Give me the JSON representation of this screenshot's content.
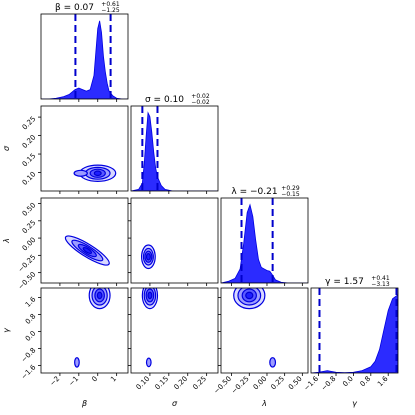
{
  "chart_data": {
    "type": "corner",
    "parameters": [
      {
        "symbol": "β",
        "label": "β",
        "range": [
          -3,
          1.6
        ],
        "ticks": [
          "−2",
          "−1",
          "0",
          "1"
        ],
        "tick_values": [
          -2,
          -1,
          0,
          1
        ],
        "median": 0.07,
        "plus": "+0.61",
        "minus": "−1.25",
        "title_main": "β = 0.07",
        "q_low": -1.18,
        "q_high": 0.68
      },
      {
        "symbol": "σ",
        "label": "σ",
        "range": [
          0.05,
          0.28
        ],
        "ticks": [
          "0.10",
          "0.15",
          "0.20",
          "0.25"
        ],
        "tick_values": [
          0.1,
          0.15,
          0.2,
          0.25
        ],
        "median": 0.1,
        "plus": "+0.02",
        "minus": "−0.02",
        "title_main": "σ = 0.10",
        "q_low": 0.08,
        "q_high": 0.12
      },
      {
        "symbol": "λ",
        "label": "λ",
        "range": [
          -0.65,
          0.58
        ],
        "ticks": [
          "−0.50",
          "−0.25",
          "0.00",
          "0.25",
          "0.50"
        ],
        "tick_values": [
          -0.5,
          -0.25,
          0.0,
          0.25,
          0.5
        ],
        "median": -0.21,
        "plus": "+0.29",
        "minus": "−0.15",
        "title_main": "λ = −0.21",
        "q_low": -0.36,
        "q_high": 0.08
      },
      {
        "symbol": "γ",
        "label": "γ",
        "range": [
          -1.95,
          2.05
        ],
        "ticks": [
          "−1.6",
          "−0.8",
          "0.0",
          "0.8",
          "1.6"
        ],
        "tick_values": [
          -1.6,
          -0.8,
          0.0,
          0.8,
          1.6
        ],
        "median": 1.57,
        "plus": "+0.41",
        "minus": "−3.13",
        "title_main": "γ = 1.57",
        "q_low": -1.56,
        "q_high": 1.98
      }
    ],
    "marginals": [
      {
        "param": 0,
        "x": [
          -3.0,
          -2.6,
          -2.2,
          -1.8,
          -1.5,
          -1.2,
          -1.0,
          -0.8,
          -0.6,
          -0.4,
          -0.2,
          -0.1,
          0.0,
          0.1,
          0.2,
          0.3,
          0.4,
          0.5,
          0.6,
          0.8,
          1.0,
          1.3,
          1.6
        ],
        "density": [
          0,
          0,
          0.01,
          0.03,
          0.06,
          0.12,
          0.14,
          0.12,
          0.1,
          0.12,
          0.3,
          0.6,
          0.9,
          1.0,
          0.85,
          0.55,
          0.35,
          0.2,
          0.1,
          0.04,
          0.01,
          0,
          0
        ]
      },
      {
        "param": 1,
        "x": [
          0.05,
          0.07,
          0.08,
          0.085,
          0.09,
          0.095,
          0.1,
          0.105,
          0.11,
          0.115,
          0.12,
          0.13,
          0.14,
          0.16,
          0.2,
          0.28
        ],
        "density": [
          0,
          0.02,
          0.1,
          0.35,
          0.7,
          1.0,
          0.95,
          0.75,
          0.5,
          0.3,
          0.18,
          0.07,
          0.02,
          0,
          0,
          0
        ]
      },
      {
        "param": 2,
        "x": [
          -0.65,
          -0.55,
          -0.45,
          -0.38,
          -0.33,
          -0.28,
          -0.24,
          -0.2,
          -0.16,
          -0.12,
          -0.08,
          -0.04,
          0.0,
          0.04,
          0.08,
          0.12,
          0.2,
          0.3,
          0.58
        ],
        "density": [
          0,
          0.02,
          0.06,
          0.18,
          0.5,
          0.9,
          1.0,
          0.85,
          0.55,
          0.3,
          0.2,
          0.18,
          0.16,
          0.15,
          0.1,
          0.04,
          0.01,
          0,
          0
        ]
      },
      {
        "param": 3,
        "x": [
          -1.95,
          -1.6,
          -1.2,
          -0.8,
          -0.4,
          0.0,
          0.4,
          0.8,
          1.0,
          1.2,
          1.4,
          1.6,
          1.8,
          2.05
        ],
        "density": [
          0,
          0.01,
          0.03,
          0.01,
          0.005,
          0.01,
          0.03,
          0.08,
          0.15,
          0.3,
          0.55,
          0.8,
          0.95,
          1.0
        ]
      }
    ],
    "pairs": [
      {
        "x": 0,
        "y": 1,
        "blobs": [
          {
            "cx": 0.0,
            "cy": 0.098,
            "rx": [
              0.95,
              0.65,
              0.4,
              0.18
            ],
            "ry": [
              0.022,
              0.016,
              0.011,
              0.006
            ]
          },
          {
            "cx": -0.9,
            "cy": 0.098,
            "rx": [
              0.35
            ],
            "ry": [
              0.008
            ]
          }
        ]
      },
      {
        "x": 0,
        "y": 2,
        "blobs": [
          {
            "cx": -0.55,
            "cy": -0.18,
            "rx": [
              1.35,
              0.95,
              0.55,
              0.25
            ],
            "ry": [
              0.09,
              0.065,
              0.045,
              0.025
            ],
            "angle_deg": 32
          }
        ]
      },
      {
        "x": 1,
        "y": 2,
        "blobs": [
          {
            "cx": 0.096,
            "cy": -0.27,
            "rx": [
              0.018,
              0.013,
              0.009,
              0.005
            ],
            "ry": [
              0.17,
              0.12,
              0.08,
              0.045
            ]
          }
        ]
      },
      {
        "x": 0,
        "y": 3,
        "blobs": [
          {
            "cx": 0.1,
            "cy": 1.7,
            "rx": [
              0.55,
              0.4,
              0.25,
              0.12
            ],
            "ry": [
              0.62,
              0.45,
              0.3,
              0.15
            ]
          },
          {
            "cx": -1.1,
            "cy": -1.45,
            "rx": [
              0.12
            ],
            "ry": [
              0.22
            ]
          }
        ]
      },
      {
        "x": 1,
        "y": 3,
        "blobs": [
          {
            "cx": 0.1,
            "cy": 1.7,
            "rx": [
              0.02,
              0.015,
              0.01,
              0.005
            ],
            "ry": [
              0.62,
              0.45,
              0.3,
              0.15
            ]
          },
          {
            "cx": 0.097,
            "cy": -1.45,
            "rx": [
              0.006
            ],
            "ry": [
              0.2
            ]
          }
        ]
      },
      {
        "x": 2,
        "y": 3,
        "blobs": [
          {
            "cx": -0.25,
            "cy": 1.7,
            "rx": [
              0.22,
              0.16,
              0.1,
              0.05
            ],
            "ry": [
              0.62,
              0.45,
              0.3,
              0.15
            ]
          },
          {
            "cx": 0.08,
            "cy": -1.45,
            "rx": [
              0.04
            ],
            "ry": [
              0.22
            ]
          }
        ]
      }
    ]
  }
}
